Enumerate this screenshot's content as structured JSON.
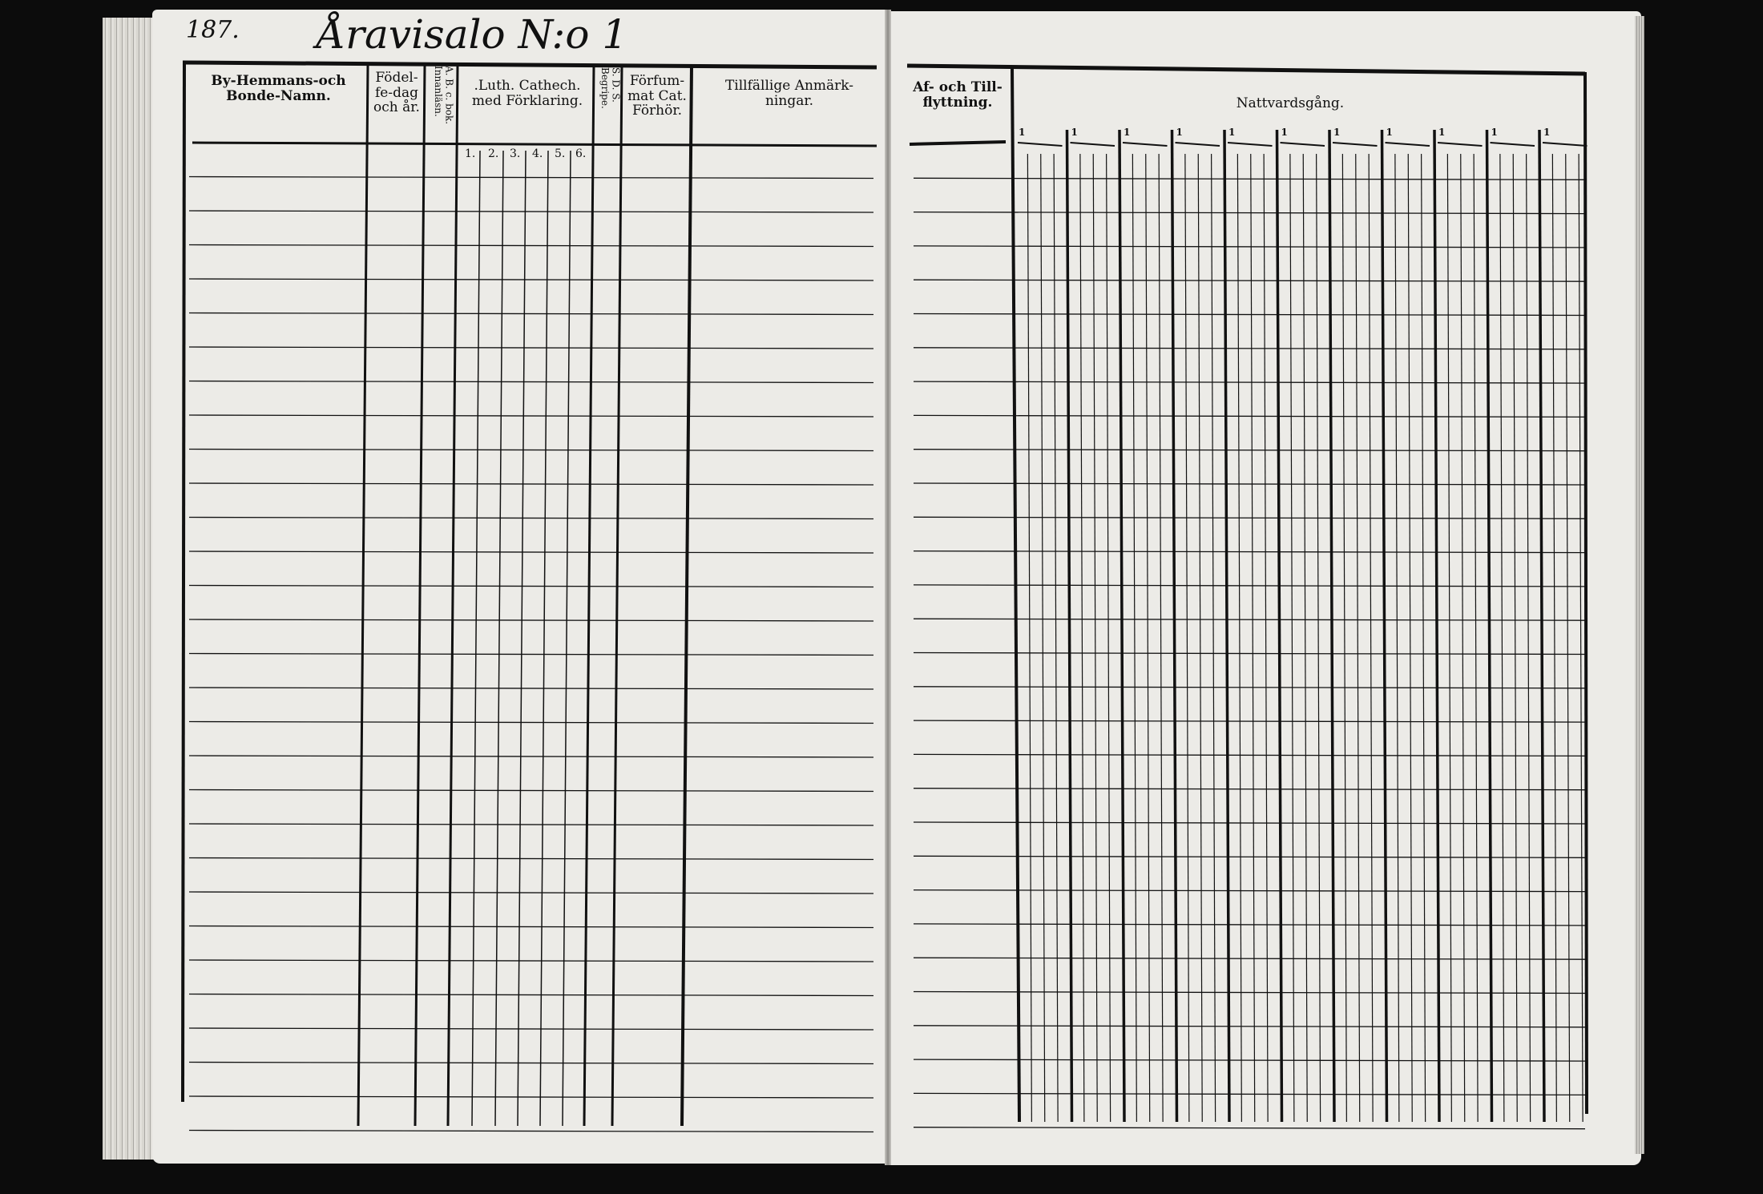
{
  "page_number": "187.",
  "handwritten_title": "Åravisalo N:o 1",
  "left_page": {
    "columns": [
      {
        "label": "By-Hemmans-och Bonde-Namn."
      },
      {
        "label": "Födel-fe-dag och år."
      },
      {
        "label": "A. B. c. bok. Innanläsn."
      },
      {
        "label": ".Luth. Cathech. med Förklaring.",
        "sub_labels": [
          "1.",
          "2.",
          "3.",
          "4.",
          "5.",
          "6."
        ]
      },
      {
        "label": "S. D. S. Begripe."
      },
      {
        "label": "Förfum-mat Cat. Förhör."
      },
      {
        "label": "Tillfällige Anmärk-ningar."
      }
    ]
  },
  "right_page": {
    "columns": [
      {
        "label": "Af- och Till-flyttning."
      },
      {
        "label": "Nattvardsgång.",
        "group_marks": [
          "1",
          "1",
          "1",
          "1",
          "1",
          "1",
          "1",
          "1",
          "1",
          "1",
          "1"
        ]
      }
    ]
  },
  "colors": {
    "background": "#0c0c0c",
    "paper": "#ecebe7",
    "ink": "#111111"
  }
}
